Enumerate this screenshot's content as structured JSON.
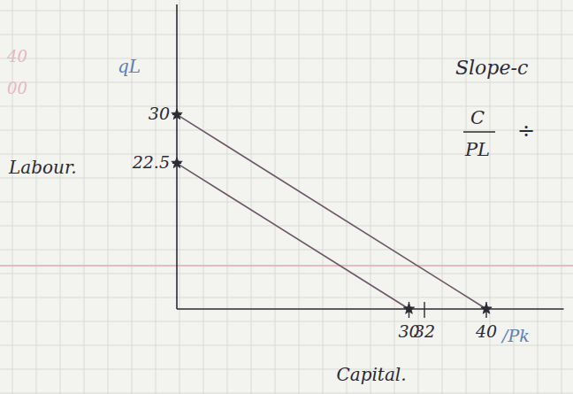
{
  "chart_data": {
    "type": "line",
    "x_label": "Capital.",
    "y_label": "Labour.",
    "xlim": [
      0,
      50
    ],
    "ylim": [
      0,
      47
    ],
    "xticks": [
      30,
      32,
      40
    ],
    "yticks": [
      22.5,
      30
    ],
    "grid": false,
    "series": [
      {
        "x": [
          0,
          40
        ],
        "values": [
          30,
          0
        ],
        "color": "#6b5566",
        "marker": "star"
      },
      {
        "x": [
          0,
          30
        ],
        "values": [
          22.5,
          0
        ],
        "color": "#6b5566",
        "marker": "star"
      }
    ],
    "annotations": [
      {
        "text": "qL"
      },
      {
        "text": "Slope-c"
      },
      {
        "text": "C"
      },
      {
        "text": "PL"
      },
      {
        "text": "÷"
      },
      {
        "text": "/Pk"
      },
      {
        "text": "40"
      },
      {
        "text": "00"
      }
    ]
  }
}
